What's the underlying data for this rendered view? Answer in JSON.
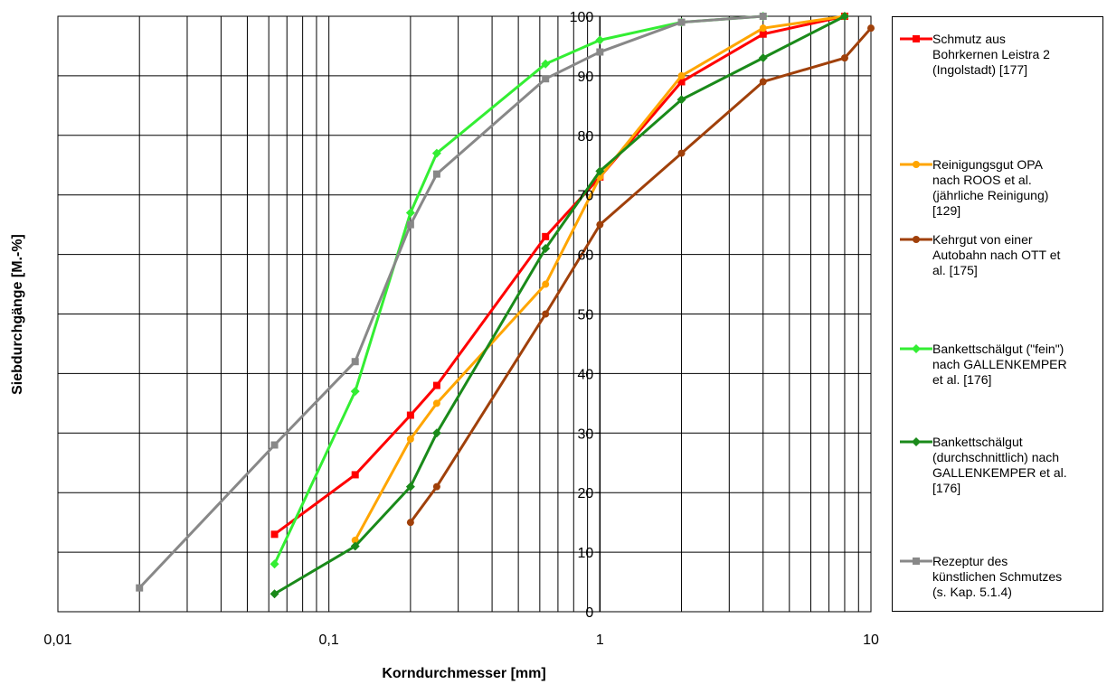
{
  "chart_data": {
    "type": "line",
    "xlabel": "Korndurchmesser [mm]",
    "ylabel": "Siebdurchgänge [M.-%]",
    "x_scale": "log",
    "xlim": [
      0.01,
      10
    ],
    "ylim": [
      0,
      100
    ],
    "x_ticks": [
      "0,01",
      "0,1",
      "1",
      "10"
    ],
    "y_ticks": [
      "0",
      "10",
      "20",
      "30",
      "40",
      "50",
      "60",
      "70",
      "80",
      "90",
      "100"
    ],
    "grid": true,
    "legend_position": "right",
    "series": [
      {
        "name": "Schmutz aus Bohrkernen Leistra 2 (Ingolstadt) [177]",
        "color": "#ff0000",
        "marker": "square",
        "points": [
          [
            0.063,
            13
          ],
          [
            0.125,
            23
          ],
          [
            0.2,
            33
          ],
          [
            0.25,
            38
          ],
          [
            0.63,
            63
          ],
          [
            1,
            73
          ],
          [
            2,
            89
          ],
          [
            4,
            97
          ],
          [
            8,
            100
          ]
        ]
      },
      {
        "name": "Reinigungsgut OPA nach ROOS et al. (jährliche Reinigung) [129]",
        "color": "#ffa500",
        "marker": "circle",
        "points": [
          [
            0.125,
            12
          ],
          [
            0.2,
            29
          ],
          [
            0.25,
            35
          ],
          [
            0.63,
            55
          ],
          [
            1,
            73
          ],
          [
            2,
            90
          ],
          [
            4,
            98
          ],
          [
            8,
            100
          ]
        ]
      },
      {
        "name": "Kehrgut von einer Autobahn nach OTT et al. [175]",
        "color": "#a0400a",
        "marker": "circle",
        "points": [
          [
            0.2,
            15
          ],
          [
            0.25,
            21
          ],
          [
            0.63,
            50
          ],
          [
            1,
            65
          ],
          [
            2,
            77
          ],
          [
            4,
            89
          ],
          [
            8,
            93
          ],
          [
            10,
            98
          ]
        ]
      },
      {
        "name": "Bankettschälgut (\"fein\") nach GALLENKEMPER et al. [176]",
        "color": "#33ee33",
        "marker": "diamond",
        "points": [
          [
            0.063,
            8
          ],
          [
            0.125,
            37
          ],
          [
            0.2,
            67
          ],
          [
            0.25,
            77
          ],
          [
            0.63,
            92
          ],
          [
            1,
            96
          ],
          [
            2,
            99
          ],
          [
            4,
            100
          ]
        ]
      },
      {
        "name": "Bankettschälgut (durchschnittlich) nach GALLENKEMPER et al. [176]",
        "color": "#1a8a1a",
        "marker": "diamond",
        "points": [
          [
            0.063,
            3
          ],
          [
            0.125,
            11
          ],
          [
            0.2,
            21
          ],
          [
            0.25,
            30
          ],
          [
            0.63,
            61
          ],
          [
            1,
            74
          ],
          [
            2,
            86
          ],
          [
            4,
            93
          ],
          [
            8,
            100
          ]
        ]
      },
      {
        "name": "Rezeptur des künstlichen Schmutzes (s. Kap. 5.1.4)",
        "color": "#888888",
        "marker": "square",
        "points": [
          [
            0.02,
            4
          ],
          [
            0.063,
            28
          ],
          [
            0.125,
            42
          ],
          [
            0.2,
            65
          ],
          [
            0.25,
            73.5
          ],
          [
            0.63,
            89.5
          ],
          [
            1,
            94
          ],
          [
            2,
            99
          ],
          [
            4,
            100
          ]
        ]
      }
    ]
  },
  "legend": {
    "items": [
      "Schmutz aus\nBohrkernen Leistra 2\n(Ingolstadt) [177]",
      "Reinigungsgut OPA\nnach ROOS et al.\n(jährliche Reinigung)\n[129]",
      "Kehrgut von einer\nAutobahn nach OTT et\nal. [175]",
      "Bankettschälgut (\"fein\")\nnach GALLENKEMPER\net al. [176]",
      "Bankettschälgut\n(durchschnittlich) nach\nGALLENKEMPER et al.\n[176]",
      "Rezeptur des\nkünstlichen Schmutzes\n(s. Kap. 5.1.4)"
    ]
  }
}
